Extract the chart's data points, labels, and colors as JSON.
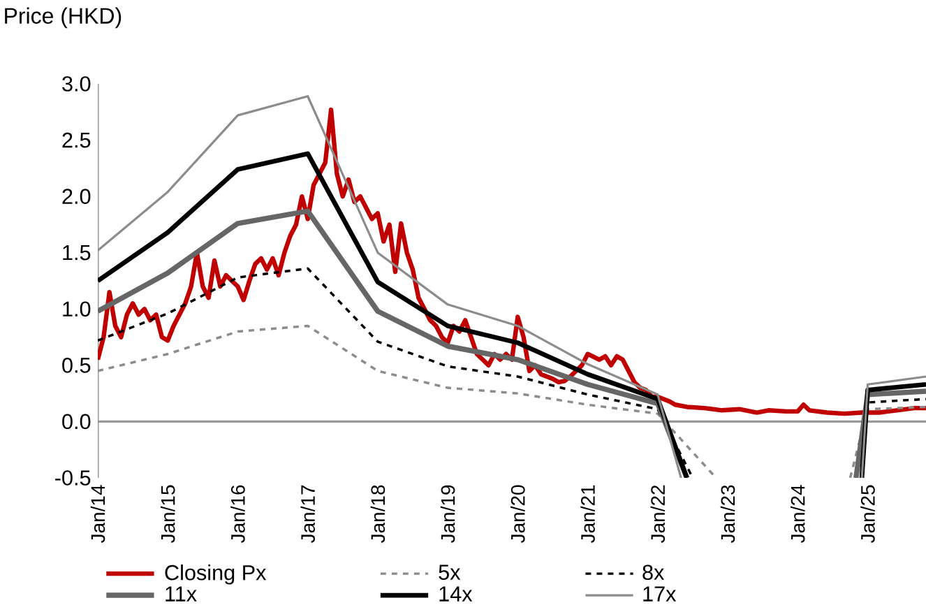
{
  "chart_data": {
    "type": "line",
    "ylabel": "Price (HKD)",
    "xlim": [
      "2014-01",
      "2025-11"
    ],
    "xticks": [
      {
        "value": "2014-01",
        "label": "Jan/14"
      },
      {
        "value": "2015-01",
        "label": "Jan/15"
      },
      {
        "value": "2016-01",
        "label": "Jan/16"
      },
      {
        "value": "2017-01",
        "label": "Jan/17"
      },
      {
        "value": "2018-01",
        "label": "Jan/18"
      },
      {
        "value": "2019-01",
        "label": "Jan/19"
      },
      {
        "value": "2020-01",
        "label": "Jan/20"
      },
      {
        "value": "2021-01",
        "label": "Jan/21"
      },
      {
        "value": "2022-01",
        "label": "Jan/22"
      },
      {
        "value": "2023-01",
        "label": "Jan/23"
      },
      {
        "value": "2024-01",
        "label": "Jan/24"
      },
      {
        "value": "2025-01",
        "label": "Jan/25"
      }
    ],
    "ylim": [
      -0.5,
      3.0
    ],
    "yticks": [
      {
        "value": -0.5,
        "label": "-0.5"
      },
      {
        "value": 0,
        "label": "0.0"
      },
      0.5,
      {
        "value": 1,
        "label": "1.0"
      },
      1.5,
      {
        "value": 2,
        "label": "2.0"
      },
      2.5,
      {
        "value": 3,
        "label": "3.0"
      }
    ],
    "legend": "bottom",
    "series": [
      {
        "name": "Closing Px",
        "color": "#c00000",
        "line_style": "solid",
        "x": [
          "2014-01",
          "2014-02",
          "2014-03",
          "2014-04",
          "2014-05",
          "2014-06",
          "2014-07",
          "2014-08",
          "2014-09",
          "2014-10",
          "2014-11",
          "2014-12",
          "2015-01",
          "2015-02",
          "2015-03",
          "2015-04",
          "2015-05",
          "2015-06",
          "2015-07",
          "2015-08",
          "2015-09",
          "2015-10",
          "2015-11",
          "2015-12",
          "2016-01",
          "2016-02",
          "2016-03",
          "2016-04",
          "2016-05",
          "2016-06",
          "2016-07",
          "2016-08",
          "2016-09",
          "2016-10",
          "2016-11",
          "2016-12",
          "2017-01",
          "2017-02",
          "2017-03",
          "2017-04",
          "2017-05",
          "2017-06",
          "2017-07",
          "2017-08",
          "2017-09",
          "2017-10",
          "2017-11",
          "2017-12",
          "2018-01",
          "2018-02",
          "2018-03",
          "2018-04",
          "2018-05",
          "2018-06",
          "2018-07",
          "2018-08",
          "2018-09",
          "2018-10",
          "2018-11",
          "2018-12",
          "2019-01",
          "2019-02",
          "2019-03",
          "2019-04",
          "2019-05",
          "2019-06",
          "2019-07",
          "2019-08",
          "2019-09",
          "2019-10",
          "2019-11",
          "2019-12",
          "2020-01",
          "2020-02",
          "2020-03",
          "2020-04",
          "2020-05",
          "2020-06",
          "2020-07",
          "2020-08",
          "2020-09",
          "2020-10",
          "2020-11",
          "2020-12",
          "2021-01",
          "2021-03",
          "2021-04",
          "2021-05",
          "2021-06",
          "2021-07",
          "2021-08",
          "2021-09",
          "2021-10",
          "2021-11",
          "2021-12",
          "2022-01",
          "2022-02",
          "2022-03",
          "2022-04",
          "2022-06",
          "2022-09",
          "2022-12",
          "2023-03",
          "2023-06",
          "2023-08",
          "2023-11",
          "2024-01",
          "2024-02",
          "2024-03",
          "2024-06",
          "2024-09",
          "2024-12",
          "2025-03",
          "2025-06",
          "2025-09",
          "2025-11"
        ],
        "values": [
          0.55,
          0.75,
          1.15,
          0.85,
          0.75,
          0.95,
          1.05,
          0.95,
          1.0,
          0.9,
          0.95,
          0.75,
          0.72,
          0.85,
          0.95,
          1.05,
          1.2,
          1.5,
          1.2,
          1.1,
          1.43,
          1.2,
          1.3,
          1.25,
          1.2,
          1.08,
          1.25,
          1.4,
          1.45,
          1.35,
          1.45,
          1.3,
          1.5,
          1.65,
          1.75,
          2.0,
          1.8,
          2.1,
          2.2,
          2.3,
          2.77,
          2.2,
          2.0,
          2.15,
          1.95,
          2.0,
          1.9,
          1.8,
          1.85,
          1.6,
          1.75,
          1.33,
          1.76,
          1.5,
          1.35,
          1.1,
          1.0,
          0.9,
          0.85,
          0.75,
          0.7,
          0.85,
          0.8,
          0.9,
          0.75,
          0.6,
          0.55,
          0.5,
          0.6,
          0.55,
          0.6,
          0.55,
          0.93,
          0.75,
          0.45,
          0.5,
          0.42,
          0.4,
          0.38,
          0.35,
          0.36,
          0.4,
          0.45,
          0.5,
          0.6,
          0.55,
          0.58,
          0.5,
          0.58,
          0.55,
          0.45,
          0.35,
          0.3,
          0.28,
          0.22,
          0.22,
          0.2,
          0.18,
          0.15,
          0.13,
          0.12,
          0.1,
          0.11,
          0.08,
          0.1,
          0.09,
          0.09,
          0.15,
          0.1,
          0.08,
          0.07,
          0.08,
          0.08,
          0.1,
          0.12,
          0.12
        ]
      },
      {
        "name": "5x",
        "color": "#8c8c8c",
        "line_style": "dashed",
        "x": [
          "2014-01",
          "2015-01",
          "2016-01",
          "2017-01",
          "2018-01",
          "2019-01",
          "2020-01",
          "2021-01",
          "2022-01",
          "2022-11",
          "2023-06",
          "2024-10",
          "2025-01",
          "2025-11"
        ],
        "values": [
          0.45,
          0.6,
          0.8,
          0.85,
          0.45,
          0.3,
          0.25,
          0.15,
          0.07,
          -0.5,
          null,
          -0.5,
          0.11,
          0.13
        ]
      },
      {
        "name": "8x",
        "color": "#000000",
        "line_style": "dashed",
        "x": [
          "2014-01",
          "2015-01",
          "2016-01",
          "2017-01",
          "2018-01",
          "2019-01",
          "2020-01",
          "2021-01",
          "2022-01",
          "2022-07",
          "2023-06",
          "2024-11",
          "2025-01",
          "2025-11"
        ],
        "values": [
          0.72,
          0.96,
          1.28,
          1.36,
          0.71,
          0.49,
          0.4,
          0.24,
          0.11,
          -0.5,
          null,
          -0.5,
          0.17,
          0.2
        ]
      },
      {
        "name": "11x",
        "color": "#666666",
        "line_style": "solid",
        "x": [
          "2014-01",
          "2015-01",
          "2016-01",
          "2017-01",
          "2018-01",
          "2019-01",
          "2020-01",
          "2021-01",
          "2022-01",
          "2022-06",
          "2023-06",
          "2024-11",
          "2025-01",
          "2025-11"
        ],
        "values": [
          0.98,
          1.32,
          1.76,
          1.87,
          0.98,
          0.67,
          0.55,
          0.33,
          0.16,
          -0.5,
          null,
          -0.5,
          0.24,
          0.27
        ]
      },
      {
        "name": "14x",
        "color": "#000000",
        "line_style": "solid",
        "x": [
          "2014-01",
          "2015-01",
          "2016-01",
          "2017-01",
          "2018-01",
          "2019-01",
          "2020-01",
          "2021-01",
          "2022-01",
          "2022-06",
          "2023-06",
          "2024-12",
          "2025-01",
          "2025-11"
        ],
        "values": [
          1.25,
          1.68,
          2.24,
          2.38,
          1.24,
          0.85,
          0.7,
          0.42,
          0.2,
          -0.5,
          null,
          -0.5,
          0.28,
          0.33
        ]
      },
      {
        "name": "17x",
        "color": "#8c8c8c",
        "line_style": "solid",
        "x": [
          "2014-01",
          "2015-01",
          "2016-01",
          "2017-01",
          "2018-01",
          "2019-01",
          "2020-01",
          "2021-01",
          "2022-01",
          "2022-05",
          "2023-06",
          "2024-12",
          "2025-01",
          "2025-11"
        ],
        "values": [
          1.52,
          2.04,
          2.72,
          2.89,
          1.5,
          1.04,
          0.85,
          0.51,
          0.24,
          -0.5,
          null,
          -0.5,
          0.33,
          0.4
        ]
      }
    ]
  }
}
